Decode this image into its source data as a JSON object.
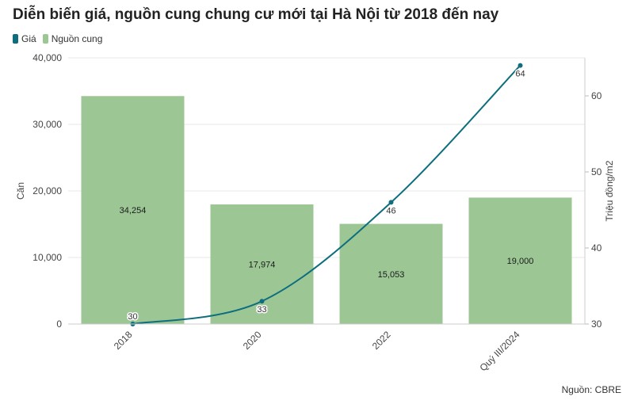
{
  "title": "Diễn biến giá, nguồn cung chung cư mới tại Hà Nội từ 2018 đến nay",
  "legend": [
    {
      "label": "Giá",
      "color": "#0e6e7e",
      "icon": "dot"
    },
    {
      "label": "Nguồn cung",
      "color": "#9cc795",
      "icon": "square"
    }
  ],
  "source": "Nguồn: CBRE",
  "chart_data": {
    "type": "bar",
    "categories": [
      "2018",
      "2020",
      "2022",
      "Quý III/2024"
    ],
    "series": [
      {
        "name": "Nguồn cung",
        "type": "bar",
        "axis": "left",
        "values": [
          34254,
          17974,
          15053,
          19000
        ],
        "labels": [
          "34,254",
          "17,974",
          "15,053",
          "19,000"
        ],
        "color": "#9cc795"
      },
      {
        "name": "Giá",
        "type": "line",
        "axis": "right",
        "values": [
          30,
          33,
          46,
          64
        ],
        "labels": [
          "30",
          "33",
          "46",
          "64"
        ],
        "color": "#0e6e7e"
      }
    ],
    "ylabel_left": "Căn",
    "ylabel_right": "Triệu đồng/m2",
    "ylim_left": [
      0,
      40000
    ],
    "yticks_left": [
      0,
      10000,
      20000,
      30000,
      40000
    ],
    "ytick_labels_left": [
      "0",
      "10,000",
      "20,000",
      "30,000",
      "40,000"
    ],
    "ylim_right": [
      30,
      65
    ],
    "yticks_right": [
      30,
      40,
      50,
      60
    ],
    "ytick_labels_right": [
      "30",
      "40",
      "50",
      "60"
    ],
    "grid": true,
    "legend_position": "top-left"
  }
}
